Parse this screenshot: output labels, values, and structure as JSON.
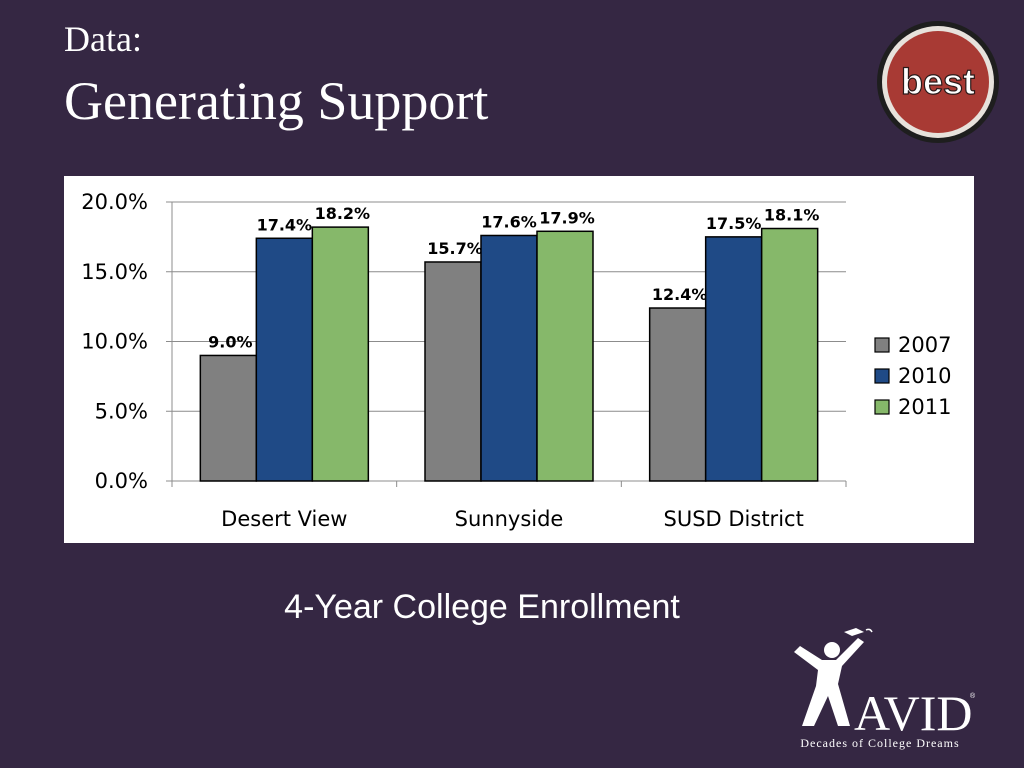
{
  "slide": {
    "title_small": "Data:",
    "title_big": "Generating Support",
    "caption": "4-Year College Enrollment",
    "badge_text": "best",
    "logo_text": "AVID",
    "logo_tagline": "Decades of College Dreams"
  },
  "colors": {
    "background": "#352743",
    "badge_red": "#a83a34",
    "series_2007": "#808080",
    "series_2010": "#1f4a86",
    "series_2011": "#86b86a"
  },
  "chart_data": {
    "type": "bar",
    "title": "",
    "xlabel": "",
    "ylabel": "",
    "categories": [
      "Desert View",
      "Sunnyside",
      "SUSD District"
    ],
    "series": [
      {
        "name": "2007",
        "values": [
          9.0,
          15.7,
          12.4
        ],
        "labels": [
          "9.0%",
          "15.7%",
          "12.4%"
        ],
        "color": "#808080"
      },
      {
        "name": "2010",
        "values": [
          17.4,
          17.6,
          17.5
        ],
        "labels": [
          "17.4%",
          "17.6%",
          "17.5%"
        ],
        "color": "#1f4a86"
      },
      {
        "name": "2011",
        "values": [
          18.2,
          17.9,
          18.1
        ],
        "labels": [
          "18.2%",
          "17.9%",
          "18.1%"
        ],
        "color": "#86b86a"
      }
    ],
    "ylim": [
      0,
      20
    ],
    "yticks": [
      0,
      5,
      10,
      15,
      20
    ],
    "ytick_labels": [
      "0.0%",
      "5.0%",
      "10.0%",
      "15.0%",
      "20.0%"
    ],
    "grid": true,
    "legend": "right"
  }
}
